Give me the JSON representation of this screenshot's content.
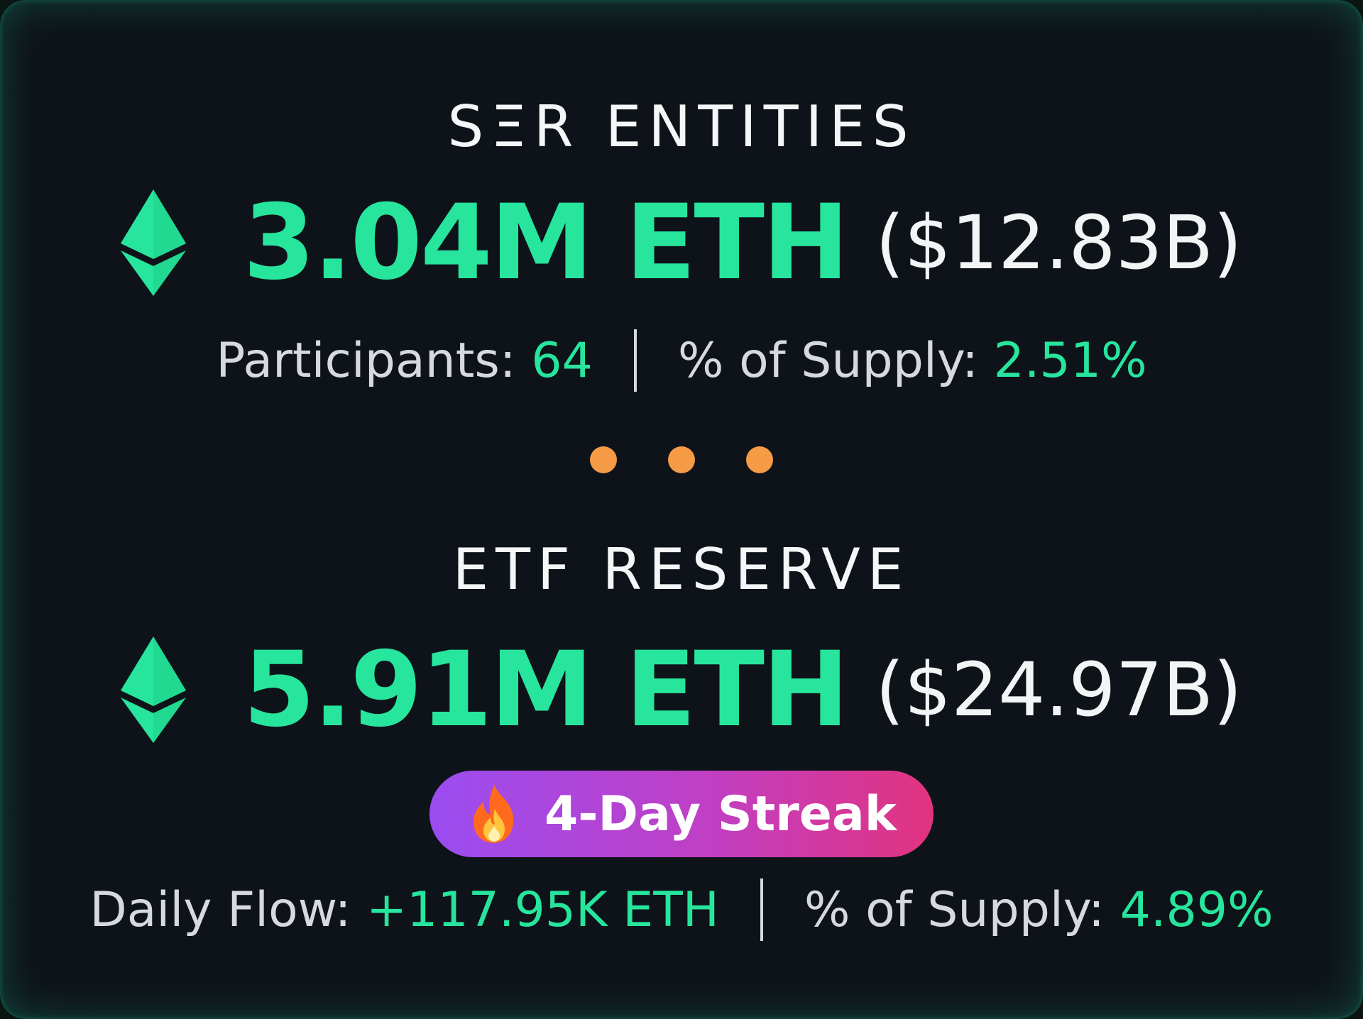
{
  "colors": {
    "accent_green": "#27e59c",
    "dot_orange": "#f59a45",
    "streak_gradient": [
      "#9a4df1",
      "#e2337f"
    ],
    "background": "#0e131a"
  },
  "ser_entities": {
    "title": "SΞR ENTITIES",
    "icon": "ethereum-icon",
    "amount": "3.04M ETH",
    "usd_value": "($12.83B)",
    "participants_label": "Participants:",
    "participants_value": "64",
    "supply_label": "% of Supply:",
    "supply_value": "2.51%"
  },
  "separator_dots": 3,
  "etf_reserve": {
    "title": "ETF RESERVE",
    "icon": "ethereum-icon",
    "amount": "5.91M ETH",
    "usd_value": "($24.97B)",
    "streak_icon": "fire-icon",
    "streak_label": "4-Day Streak",
    "daily_flow_label": "Daily Flow:",
    "daily_flow_value": "+117.95K ETH",
    "supply_label": "% of Supply:",
    "supply_value": "4.89%"
  }
}
